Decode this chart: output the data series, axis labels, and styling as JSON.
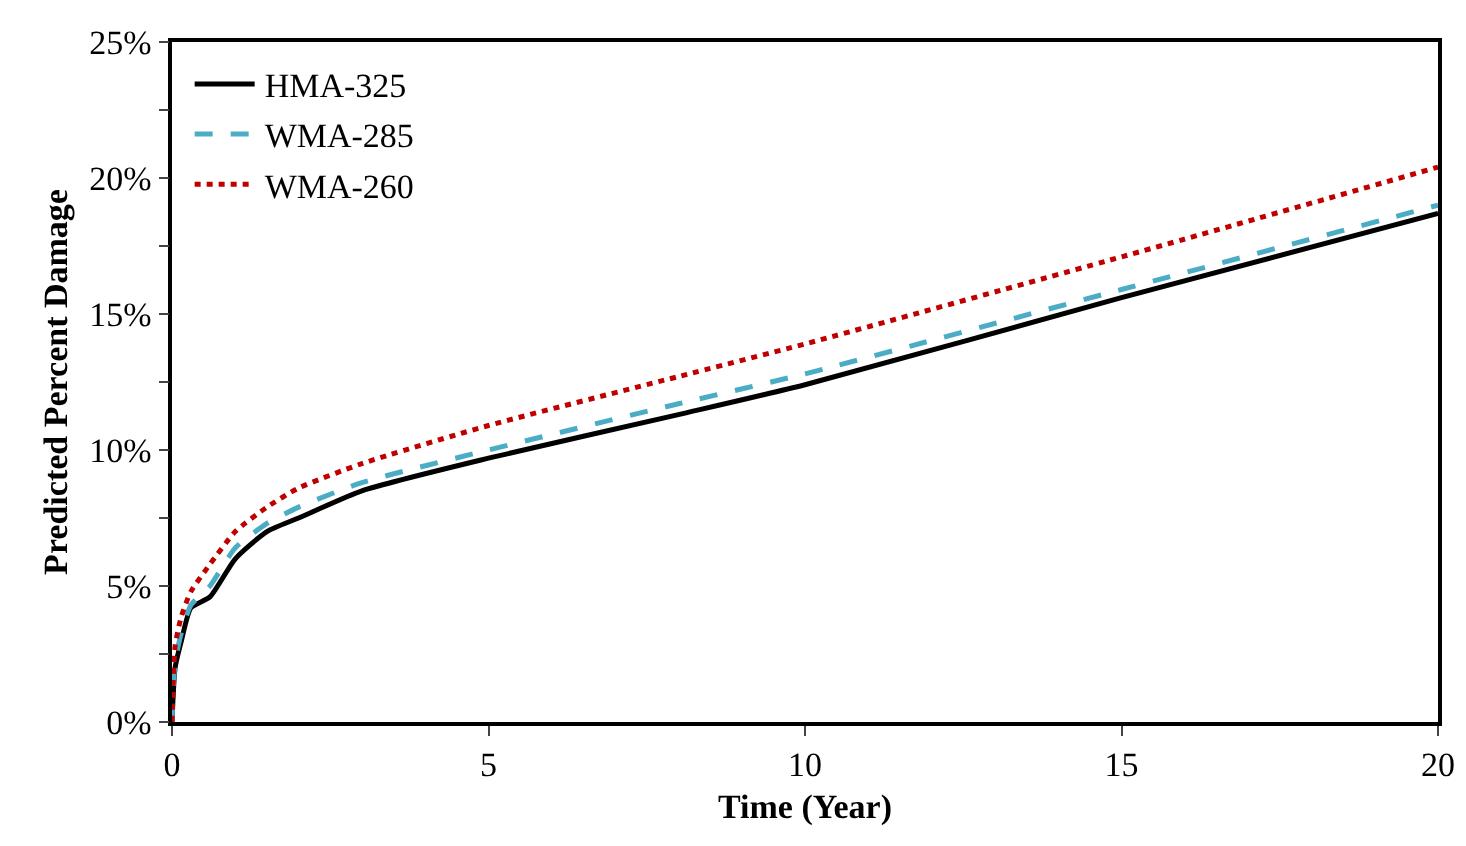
{
  "chart_data": {
    "type": "line",
    "xlabel": "Time (Year)",
    "ylabel": "Predicted Percent Damage",
    "x": [
      0,
      0.05,
      0.15,
      0.3,
      0.6,
      1,
      1.5,
      2,
      3,
      5,
      8,
      10,
      15,
      20
    ],
    "series": [
      {
        "name": "HMA-325",
        "color": "#000000",
        "line_style": "solid",
        "values": [
          0,
          2.0,
          3.0,
          4.2,
          4.6,
          6.0,
          7.0,
          7.5,
          8.5,
          9.7,
          11.3,
          12.4,
          15.6,
          18.7
        ]
      },
      {
        "name": "WMA-285",
        "color": "#4bacc6",
        "line_style": "dashed",
        "values": [
          0,
          2.2,
          3.3,
          4.3,
          5.0,
          6.4,
          7.3,
          7.9,
          8.8,
          10.0,
          11.7,
          12.8,
          15.9,
          19.0
        ]
      },
      {
        "name": "WMA-260",
        "color": "#c00000",
        "line_style": "dotted",
        "values": [
          0,
          2.8,
          3.9,
          4.8,
          5.8,
          7.0,
          7.9,
          8.6,
          9.5,
          10.9,
          12.7,
          13.9,
          17.1,
          20.4
        ]
      }
    ],
    "xlim": [
      0,
      20
    ],
    "xticks": [
      0,
      5,
      10,
      15,
      20
    ],
    "ylim": [
      0,
      25
    ],
    "yticks": [
      {
        "value": 0,
        "label": "0%"
      },
      {
        "value": 2.5,
        "label": null
      },
      {
        "value": 5,
        "label": "5%"
      },
      {
        "value": 7.5,
        "label": null
      },
      {
        "value": 10,
        "label": "10%"
      },
      {
        "value": 12.5,
        "label": null
      },
      {
        "value": 15,
        "label": "15%"
      },
      {
        "value": 17.5,
        "label": null
      },
      {
        "value": 20,
        "label": "20%"
      },
      {
        "value": 22.5,
        "label": null
      },
      {
        "value": 25,
        "label": "25%"
      }
    ],
    "grid": false,
    "legend": "top left",
    "marker": "none"
  }
}
